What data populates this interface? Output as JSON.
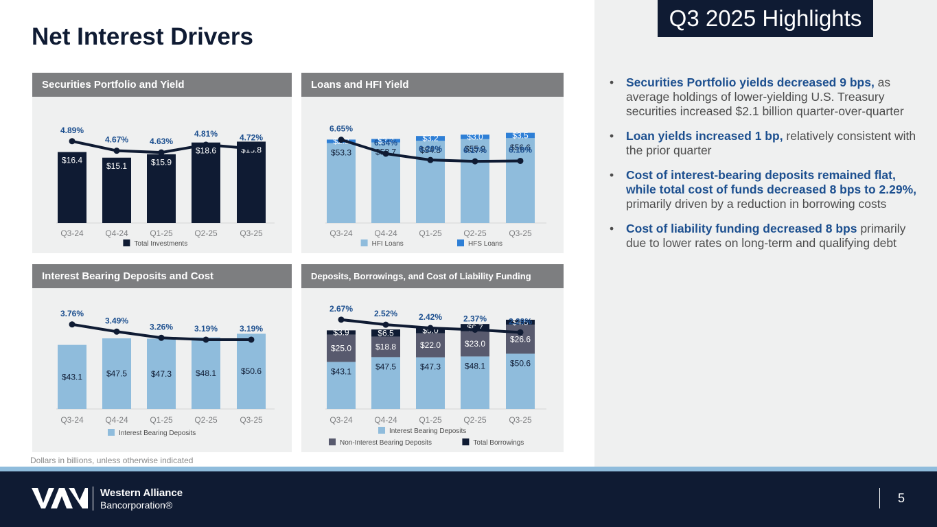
{
  "page": {
    "title": "Net Interest Drivers",
    "highlights_title": "Q3 2025 Highlights",
    "footnote": "Dollars in billions, unless otherwise indicated",
    "page_number": "5"
  },
  "brand": {
    "name_line1": "Western Alliance",
    "name_line2": "Bancorporation®",
    "colors": {
      "navy": "#0f1b33",
      "light_blue": "#8fbcdc",
      "mid_blue": "#2e7fd6",
      "slate": "#585a6e",
      "header_gray": "#7d7e80",
      "panel_gray": "#eff0f0",
      "accent_text": "#1c4f8f"
    }
  },
  "highlights": [
    {
      "lead": "Securities Portfolio yields decreased 9 bps,",
      "rest": " as average holdings of lower-yielding U.S. Treasury securities increased $2.1 billion quarter-over-quarter"
    },
    {
      "lead": "Loan yields increased 1 bp,",
      "rest": " relatively consistent with the prior quarter"
    },
    {
      "lead": "Cost of interest-bearing deposits remained flat, while total cost of funds decreased 8 bps to 2.29%,",
      "rest": " primarily driven by a reduction in borrowing costs"
    },
    {
      "lead": "Cost of liability funding decreased 8 bps",
      "rest": " primarily due to lower rates on long-term and qualifying debt"
    }
  ],
  "chart_data": [
    {
      "id": "securities",
      "type": "bar",
      "title": "Securities Portfolio and Yield",
      "categories": [
        "Q3-24",
        "Q4-24",
        "Q1-25",
        "Q2-25",
        "Q3-25"
      ],
      "series": [
        {
          "name": "Total Investments",
          "color": "#0f1b33",
          "values": [
            16.4,
            15.1,
            15.9,
            18.6,
            18.8
          ],
          "labels": [
            "$16.4",
            "$15.1",
            "$15.9",
            "$18.6",
            "$18.8"
          ]
        }
      ],
      "line": {
        "name": "Yield",
        "color": "#0f1b33",
        "values": [
          4.89,
          4.67,
          4.63,
          4.81,
          4.72
        ],
        "labels": [
          "4.89%",
          "4.67%",
          "4.63%",
          "4.81%",
          "4.72%"
        ],
        "ylim": [
          3.0,
          5.6
        ]
      },
      "legend": [
        {
          "name": "Total Investments",
          "color": "#0f1b33"
        }
      ],
      "ylim": [
        0,
        26
      ]
    },
    {
      "id": "loans",
      "type": "bar",
      "title": "Loans and HFI Yield",
      "categories": [
        "Q3-24",
        "Q4-24",
        "Q1-25",
        "Q2-25",
        "Q3-25"
      ],
      "series": [
        {
          "name": "HFI Loans",
          "color": "#8fbcdc",
          "values": [
            53.3,
            53.7,
            54.8,
            55.9,
            56.6
          ],
          "labels": [
            "$53.3",
            "$53.7",
            "$54.8",
            "$55.9",
            "$56.6"
          ]
        },
        {
          "name": "HFS Loans",
          "color": "#2e7fd6",
          "values": [
            2.3,
            2.3,
            3.2,
            3.0,
            3.5
          ],
          "labels": [
            "$2.3",
            "$2.3",
            "$3.2",
            "$3.0",
            "$3.5"
          ]
        }
      ],
      "line": {
        "name": "Yield",
        "color": "#0f1b33",
        "values": [
          6.65,
          6.34,
          6.2,
          6.17,
          6.18
        ],
        "labels": [
          "6.65%",
          "6.34%",
          "6.20%",
          "6.17%",
          "6.18%"
        ],
        "ylim": [
          4.8,
          7.3
        ]
      },
      "legend": [
        {
          "name": "HFI Loans",
          "color": "#8fbcdc"
        },
        {
          "name": "HFS Loans",
          "color": "#2e7fd6"
        }
      ],
      "ylim": [
        0,
        75
      ]
    },
    {
      "id": "deposits",
      "type": "bar",
      "title": "Interest Bearing Deposits and Cost",
      "categories": [
        "Q3-24",
        "Q4-24",
        "Q1-25",
        "Q2-25",
        "Q3-25"
      ],
      "series": [
        {
          "name": "Interest Bearing Deposits",
          "color": "#8fbcdc",
          "values": [
            43.1,
            47.5,
            47.3,
            48.1,
            50.6
          ],
          "labels": [
            "$43.1",
            "$47.5",
            "$47.3",
            "$48.1",
            "$50.6"
          ]
        }
      ],
      "line": {
        "name": "Cost",
        "color": "#0f1b33",
        "values": [
          3.76,
          3.49,
          3.26,
          3.19,
          3.19
        ],
        "labels": [
          "3.76%",
          "3.49%",
          "3.26%",
          "3.19%",
          "3.19%"
        ],
        "ylim": [
          0.6,
          4.6
        ]
      },
      "legend": [
        {
          "name": "Interest Bearing Deposits",
          "color": "#8fbcdc"
        }
      ],
      "ylim": [
        0,
        72
      ]
    },
    {
      "id": "funding",
      "type": "bar",
      "title": "Deposits, Borrowings, and Cost of Liability Funding",
      "categories": [
        "Q3-24",
        "Q4-24",
        "Q1-25",
        "Q2-25",
        "Q3-25"
      ],
      "series": [
        {
          "name": "Interest Bearing Deposits",
          "color": "#8fbcdc",
          "values": [
            43.1,
            47.5,
            47.3,
            48.1,
            50.6
          ],
          "labels": [
            "$43.1",
            "$47.5",
            "$47.3",
            "$48.1",
            "$50.6"
          ]
        },
        {
          "name": "Non-Interest Bearing Deposits",
          "color": "#585a6e",
          "values": [
            25.0,
            18.8,
            22.0,
            23.0,
            26.6
          ],
          "labels": [
            "$25.0",
            "$18.8",
            "$22.0",
            "$23.0",
            "$26.6"
          ]
        },
        {
          "name": "Total Borrowings",
          "color": "#0f1b33",
          "values": [
            3.9,
            6.5,
            5.0,
            6.7,
            4.5
          ],
          "labels": [
            "$3.9",
            "$6.5",
            "$5.0",
            "$6.7",
            "$4.5"
          ]
        }
      ],
      "line": {
        "name": "Cost of Liability Funding",
        "color": "#0f1b33",
        "values": [
          2.67,
          2.52,
          2.42,
          2.37,
          2.29
        ],
        "labels": [
          "2.67%",
          "2.52%",
          "2.42%",
          "2.37%",
          "2.29%"
        ],
        "ylim": [
          0,
          3.2
        ]
      },
      "legend": [
        {
          "name": "Interest Bearing Deposits",
          "color": "#8fbcdc"
        },
        {
          "name": "Non-Interest Bearing Deposits",
          "color": "#585a6e"
        },
        {
          "name": "Total Borrowings",
          "color": "#0f1b33"
        }
      ],
      "ylim": [
        0,
        98
      ]
    }
  ]
}
